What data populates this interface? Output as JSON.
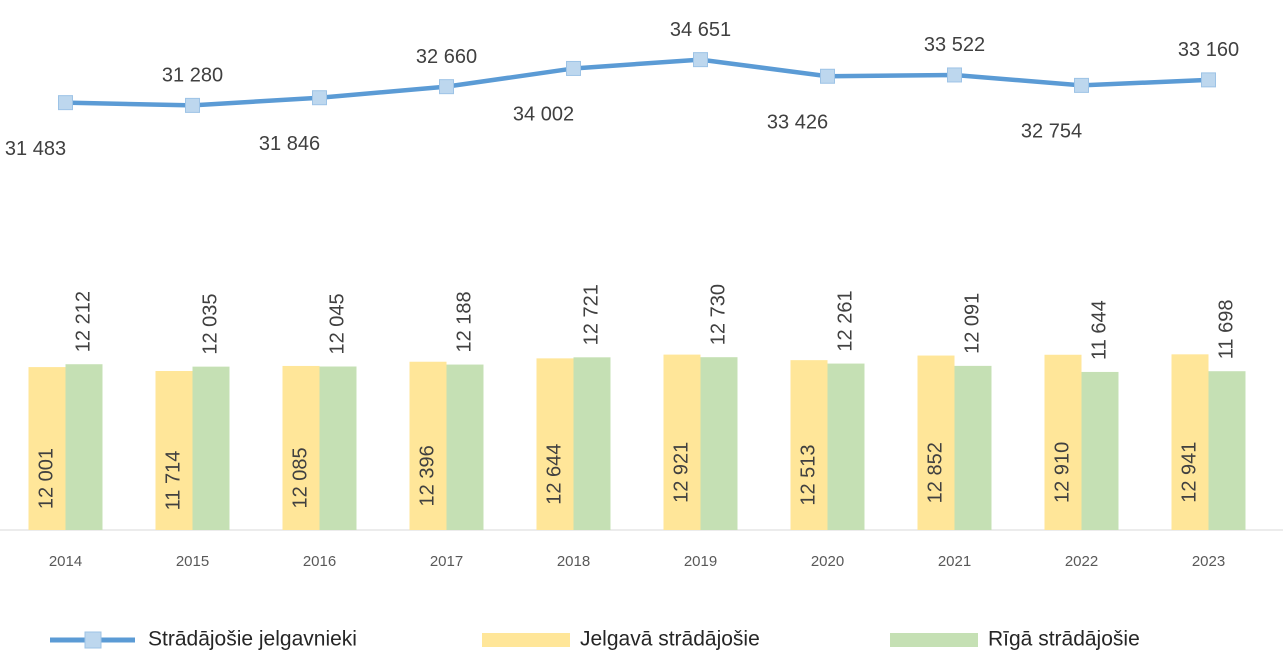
{
  "chart_data": {
    "type": "bar",
    "categories": [
      "2014",
      "2015",
      "2016",
      "2017",
      "2018",
      "2019",
      "2020",
      "2021",
      "2022",
      "2023"
    ],
    "ylim": [
      0,
      39000
    ],
    "series": [
      {
        "name": "Strādājošie jelgavnieki",
        "type": "line",
        "color": "#5b9bd5",
        "marker_color": "#bdd7ee",
        "values": [
          31483,
          31280,
          31846,
          32660,
          34002,
          34651,
          33426,
          33522,
          32754,
          33160
        ],
        "value_labels": [
          "31 483",
          "31 280",
          "31 846",
          "32 660",
          "34 002",
          "34 651",
          "33 426",
          "33 522",
          "32 754",
          "33 160"
        ]
      },
      {
        "name": "Jelgavā strādājošie",
        "type": "bar",
        "color": "#ffe699",
        "values": [
          12001,
          11714,
          12085,
          12396,
          12644,
          12921,
          12513,
          12852,
          12910,
          12941
        ],
        "value_labels": [
          "12 001",
          "11 714",
          "12 085",
          "12 396",
          "12 644",
          "12 921",
          "12 513",
          "12 852",
          "12 910",
          "12 941"
        ]
      },
      {
        "name": "Rīgā strādājošie",
        "type": "bar",
        "color": "#c5e0b4",
        "values": [
          12212,
          12035,
          12045,
          12188,
          12721,
          12730,
          12261,
          12091,
          11644,
          11698
        ],
        "value_labels": [
          "12 212",
          "12 035",
          "12 045",
          "12 188",
          "12 721",
          "12 730",
          "12 261",
          "12 091",
          "11 644",
          "11 698"
        ]
      }
    ]
  }
}
